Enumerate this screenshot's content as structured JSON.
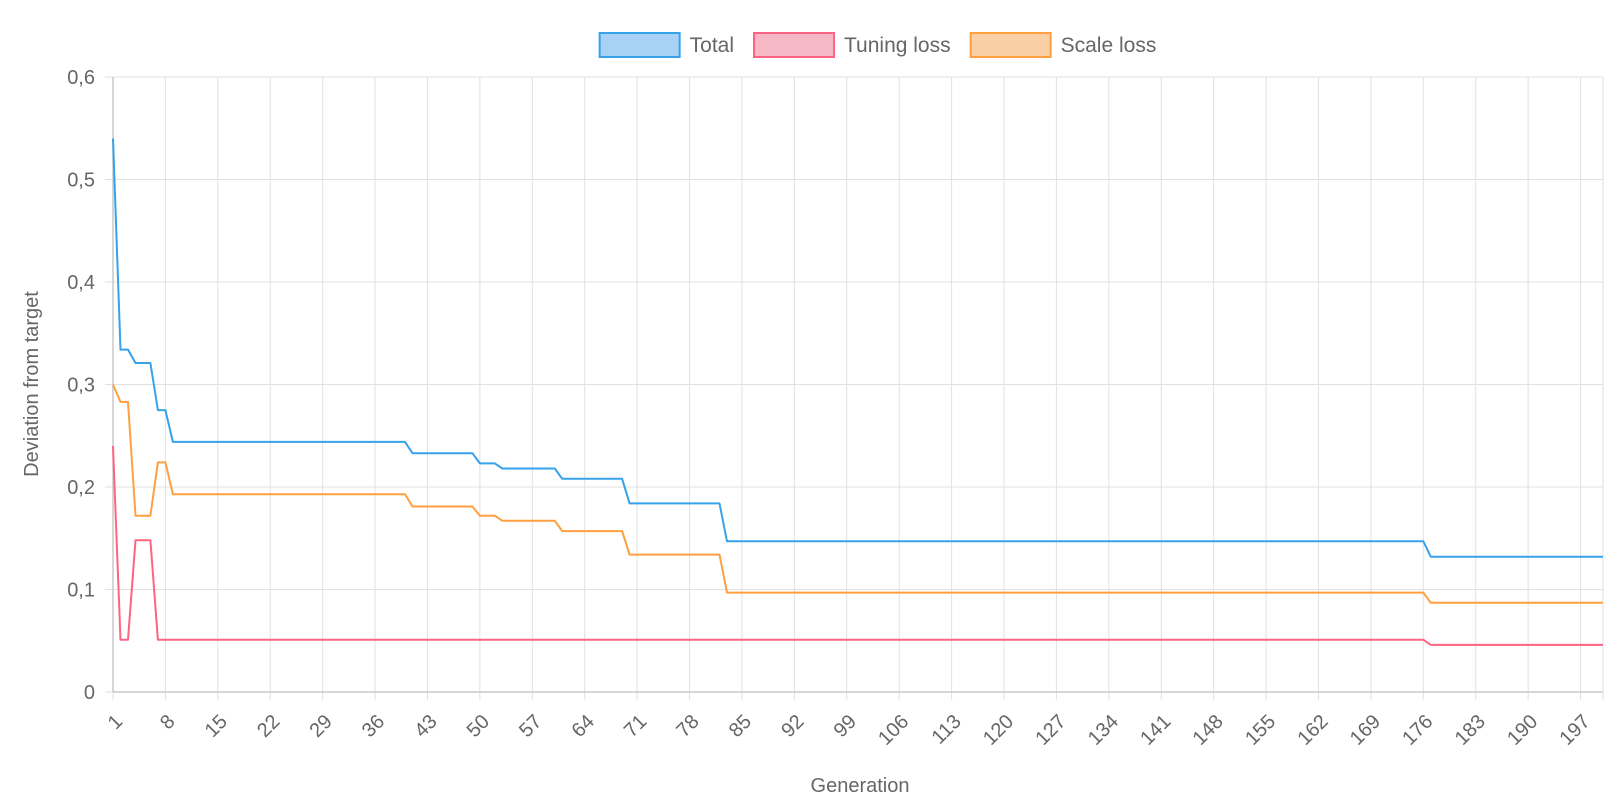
{
  "chart_data": {
    "type": "line",
    "xlabel": "Generation",
    "ylabel": "Deviation from target",
    "x_range": [
      1,
      200
    ],
    "x_tick_labels": [
      "1",
      "8",
      "15",
      "22",
      "29",
      "36",
      "43",
      "50",
      "57",
      "64",
      "71",
      "78",
      "85",
      "92",
      "99",
      "106",
      "113",
      "120",
      "127",
      "134",
      "141",
      "148",
      "155",
      "162",
      "169",
      "176",
      "183",
      "190",
      "197"
    ],
    "ylim": [
      0,
      0.6
    ],
    "y_ticks": [
      0,
      0.1,
      0.2,
      0.3,
      0.4,
      0.5,
      0.6
    ],
    "y_tick_labels": [
      "0",
      "0,1",
      "0,2",
      "0,3",
      "0,4",
      "0,5",
      "0,6"
    ],
    "grid": true,
    "legend_position": "top-center",
    "series": [
      {
        "name": "Total",
        "color": "#36a2eb",
        "fill": "#a8d1f6",
        "points": [
          [
            1,
            0.54
          ],
          [
            2,
            0.334
          ],
          [
            3,
            0.334
          ],
          [
            4,
            0.321
          ],
          [
            6,
            0.321
          ],
          [
            7,
            0.275
          ],
          [
            8,
            0.275
          ],
          [
            9,
            0.244
          ],
          [
            40,
            0.244
          ],
          [
            41,
            0.233
          ],
          [
            49,
            0.233
          ],
          [
            50,
            0.223
          ],
          [
            52,
            0.223
          ],
          [
            53,
            0.218
          ],
          [
            60,
            0.218
          ],
          [
            61,
            0.208
          ],
          [
            69,
            0.208
          ],
          [
            70,
            0.184
          ],
          [
            82,
            0.184
          ],
          [
            83,
            0.147
          ],
          [
            176,
            0.147
          ],
          [
            177,
            0.132
          ],
          [
            200,
            0.132
          ]
        ]
      },
      {
        "name": "Tuning loss",
        "color": "#ff6384",
        "fill": "#f7b8c6",
        "points": [
          [
            1,
            0.24
          ],
          [
            2,
            0.051
          ],
          [
            3,
            0.051
          ],
          [
            4,
            0.148
          ],
          [
            6,
            0.148
          ],
          [
            7,
            0.051
          ],
          [
            176,
            0.051
          ],
          [
            177,
            0.046
          ],
          [
            200,
            0.046
          ]
        ]
      },
      {
        "name": "Scale loss",
        "color": "#ff9f40",
        "fill": "#f9d0a6",
        "points": [
          [
            1,
            0.3
          ],
          [
            2,
            0.283
          ],
          [
            3,
            0.283
          ],
          [
            4,
            0.172
          ],
          [
            6,
            0.172
          ],
          [
            7,
            0.224
          ],
          [
            8,
            0.224
          ],
          [
            9,
            0.193
          ],
          [
            40,
            0.193
          ],
          [
            41,
            0.181
          ],
          [
            49,
            0.181
          ],
          [
            50,
            0.172
          ],
          [
            52,
            0.172
          ],
          [
            53,
            0.167
          ],
          [
            60,
            0.167
          ],
          [
            61,
            0.157
          ],
          [
            69,
            0.157
          ],
          [
            70,
            0.134
          ],
          [
            82,
            0.134
          ],
          [
            83,
            0.097
          ],
          [
            176,
            0.097
          ],
          [
            177,
            0.087
          ],
          [
            200,
            0.087
          ]
        ]
      }
    ]
  }
}
